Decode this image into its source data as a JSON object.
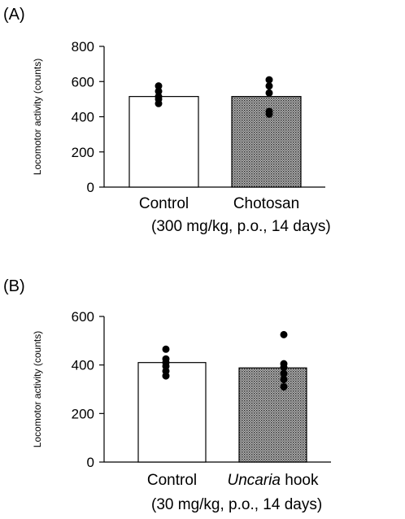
{
  "chart_data": [
    {
      "type": "bar",
      "panel_label": "(A)",
      "ylabel": "Locomotor activity (counts)",
      "ylim": [
        0,
        800
      ],
      "yticks": [
        0,
        200,
        400,
        600,
        800
      ],
      "categories": [
        "Control",
        "Chotosan"
      ],
      "category_italic": [
        "",
        ""
      ],
      "category_suffix": [
        "",
        ""
      ],
      "note": "(300 mg/kg, p.o., 14 days)",
      "values": [
        515,
        515
      ],
      "bar_fill": [
        "#ffffff",
        "hatched-gray"
      ],
      "points": [
        [
          575,
          545,
          515,
          500,
          475
        ],
        [
          610,
          575,
          535,
          430,
          415
        ]
      ],
      "grid": false
    },
    {
      "type": "bar",
      "panel_label": "(B)",
      "ylabel": "Locomotor activity (counts)",
      "ylim": [
        0,
        600
      ],
      "yticks": [
        0,
        200,
        400,
        600
      ],
      "categories": [
        "Control",
        "hook"
      ],
      "category_italic": [
        "",
        "Uncaria"
      ],
      "category_suffix": [
        "",
        ""
      ],
      "note": "(30 mg/kg, p.o., 14 days)",
      "values": [
        410,
        388
      ],
      "bar_fill": [
        "#ffffff",
        "hatched-gray"
      ],
      "points": [
        [
          465,
          425,
          410,
          395,
          375,
          355
        ],
        [
          525,
          405,
          390,
          365,
          340,
          310
        ]
      ],
      "grid": false
    }
  ]
}
